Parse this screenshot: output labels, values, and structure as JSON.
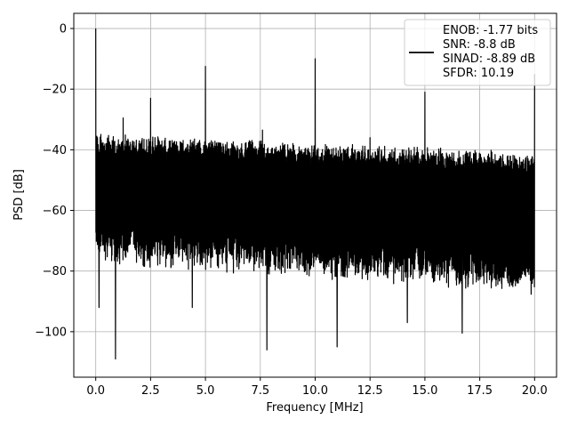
{
  "chart_data": {
    "type": "line",
    "title": "",
    "xlabel": "Frequency [MHz]",
    "ylabel": "PSD [dB]",
    "xlim": [
      -1,
      21
    ],
    "ylim": [
      -115,
      5
    ],
    "grid": true,
    "xticks": [
      0.0,
      2.5,
      5.0,
      7.5,
      10.0,
      12.5,
      15.0,
      17.5,
      20.0
    ],
    "xtick_labels": [
      "0.0",
      "2.5",
      "5.0",
      "7.5",
      "10.0",
      "12.5",
      "15.0",
      "17.5",
      "20.0"
    ],
    "yticks": [
      0,
      -20,
      -40,
      -60,
      -80,
      -100
    ],
    "ytick_labels": [
      "0",
      "−20",
      "−40",
      "−60",
      "−80",
      "−100"
    ],
    "color": "#000000",
    "legend": {
      "placement": "top-right",
      "entries": [
        "ENOB: -1.77 bits",
        "SNR: -8.8 dB",
        "SINAD: -8.89 dB",
        "SFDR: 10.19"
      ]
    },
    "noise_floor": {
      "x_range": [
        0,
        20
      ],
      "upper_db": [
        -42,
        -36
      ],
      "lower_db": [
        -85,
        -75
      ]
    },
    "spikes": [
      {
        "x": 0.0,
        "y": 0
      },
      {
        "x": 1.25,
        "y": -29.5
      },
      {
        "x": 2.5,
        "y": -23
      },
      {
        "x": 5.0,
        "y": -12.5
      },
      {
        "x": 7.6,
        "y": -33.5
      },
      {
        "x": 10.0,
        "y": -10
      },
      {
        "x": 12.5,
        "y": -36
      },
      {
        "x": 15.0,
        "y": -21
      },
      {
        "x": 20.0,
        "y": -15
      }
    ],
    "dips": [
      {
        "x": 0.15,
        "y": -92
      },
      {
        "x": 0.9,
        "y": -109
      },
      {
        "x": 7.8,
        "y": -106
      },
      {
        "x": 11.0,
        "y": -105
      },
      {
        "x": 16.7,
        "y": -100.5
      },
      {
        "x": 14.2,
        "y": -97
      },
      {
        "x": 4.4,
        "y": -92
      }
    ]
  }
}
